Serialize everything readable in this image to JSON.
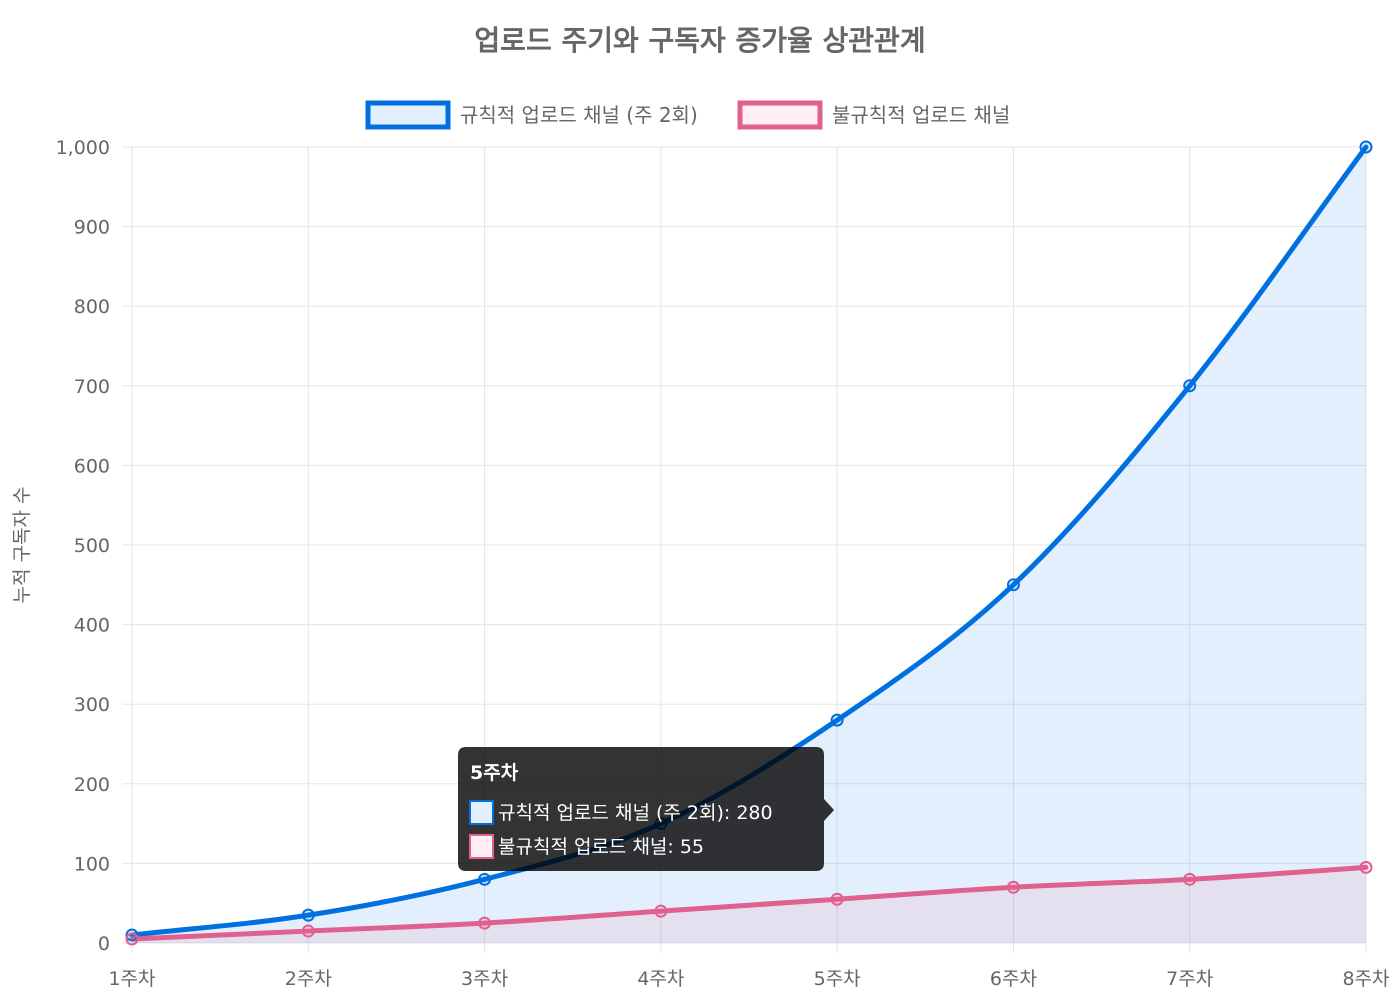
{
  "chart_data": {
    "type": "line",
    "title": "업로드 주기와 구독자 증가율 상관관계",
    "xlabel": "",
    "ylabel": "누적 구독자 수",
    "categories": [
      "1주차",
      "2주차",
      "3주차",
      "4주차",
      "5주차",
      "6주차",
      "7주차",
      "8주차"
    ],
    "ylim": [
      0,
      1000
    ],
    "yticks": [
      "0",
      "100",
      "200",
      "300",
      "400",
      "500",
      "600",
      "700",
      "800",
      "900",
      "1,000"
    ],
    "grid": true,
    "legend_position": "top",
    "series": [
      {
        "name": "규칙적 업로드 채널 (주 2회)",
        "values": [
          10,
          35,
          80,
          150,
          280,
          450,
          700,
          1000
        ],
        "color": "#0070e0",
        "fill": "rgba(0, 112, 224, 0.11)"
      },
      {
        "name": "불규칙적 업로드 채널",
        "values": [
          5,
          15,
          25,
          40,
          55,
          70,
          80,
          95
        ],
        "color": "#e0608f",
        "fill": "rgba(255, 99, 132, 0.10)"
      }
    ],
    "tooltip": {
      "title": "5주차",
      "lines": [
        "규칙적 업로드 채널 (주 2회): 280",
        "불규칙적 업로드 채널: 55"
      ]
    }
  }
}
